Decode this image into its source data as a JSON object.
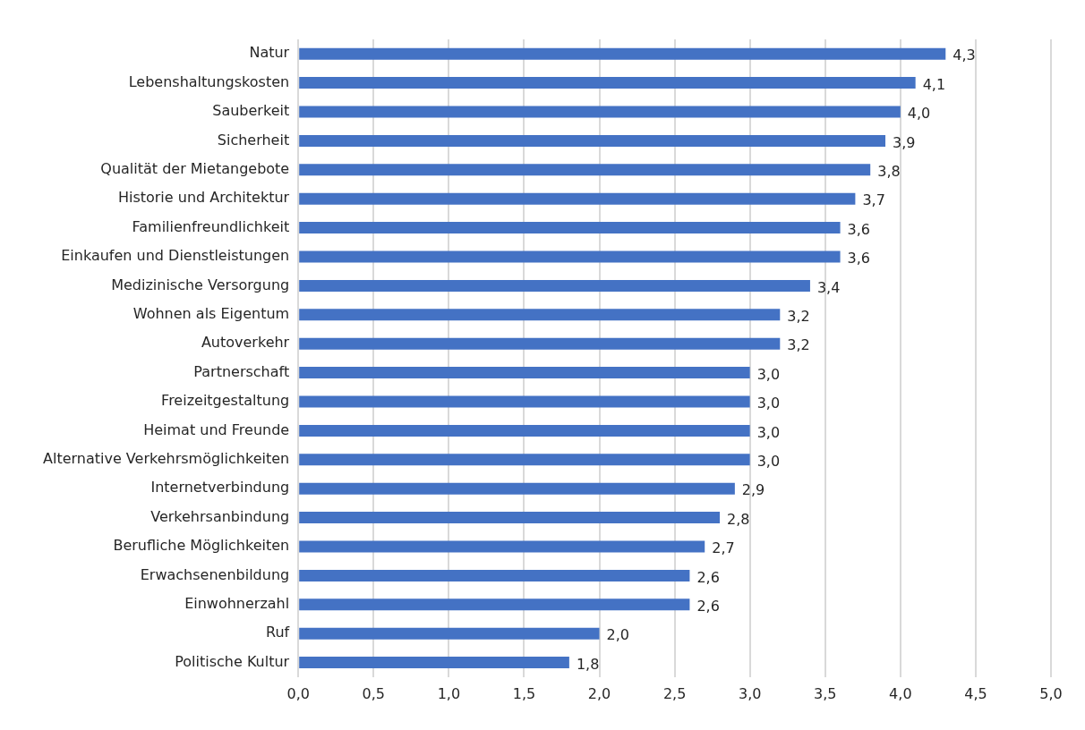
{
  "chart_data": {
    "type": "bar",
    "orientation": "horizontal",
    "categories": [
      "Natur",
      "Lebenshaltungskosten",
      "Sauberkeit",
      "Sicherheit",
      "Qualität der Mietangebote",
      "Historie und Architektur",
      "Familienfreundlichkeit",
      "Einkaufen und Dienstleistungen",
      "Medizinische Versorgung",
      "Wohnen als Eigentum",
      "Autoverkehr",
      "Partnerschaft",
      "Freizeitgestaltung",
      "Heimat und Freunde",
      "Alternative Verkehrsmöglichkeiten",
      "Internetverbindung",
      "Verkehrsanbindung",
      "Berufliche Möglichkeiten",
      "Erwachsenenbildung",
      "Einwohnerzahl",
      "Ruf",
      "Politische Kultur"
    ],
    "values": [
      4.3,
      4.1,
      4.0,
      3.9,
      3.8,
      3.7,
      3.6,
      3.6,
      3.4,
      3.2,
      3.2,
      3.0,
      3.0,
      3.0,
      3.0,
      2.9,
      2.8,
      2.7,
      2.6,
      2.6,
      2.0,
      1.8
    ],
    "value_labels": [
      "4,3",
      "4,1",
      "4,0",
      "3,9",
      "3,8",
      "3,7",
      "3,6",
      "3,6",
      "3,4",
      "3,2",
      "3,2",
      "3,0",
      "3,0",
      "3,0",
      "3,0",
      "2,9",
      "2,8",
      "2,7",
      "2,6",
      "2,6",
      "2,0",
      "1,8"
    ],
    "color": "#4472c4",
    "xlim": [
      0,
      5
    ],
    "xticks": [
      {
        "value": 0,
        "label": "0,0"
      },
      {
        "value": 0.5,
        "label": "0,5"
      },
      {
        "value": 1,
        "label": "1,0"
      },
      {
        "value": 1.5,
        "label": "1,5"
      },
      {
        "value": 2,
        "label": "2,0"
      },
      {
        "value": 2.5,
        "label": "2,5"
      },
      {
        "value": 3,
        "label": "3,0"
      },
      {
        "value": 3.5,
        "label": "3,5"
      },
      {
        "value": 4,
        "label": "4,0"
      },
      {
        "value": 4.5,
        "label": "4,5"
      },
      {
        "value": 5,
        "label": "5,0"
      }
    ],
    "grid": "x",
    "legend": false
  }
}
